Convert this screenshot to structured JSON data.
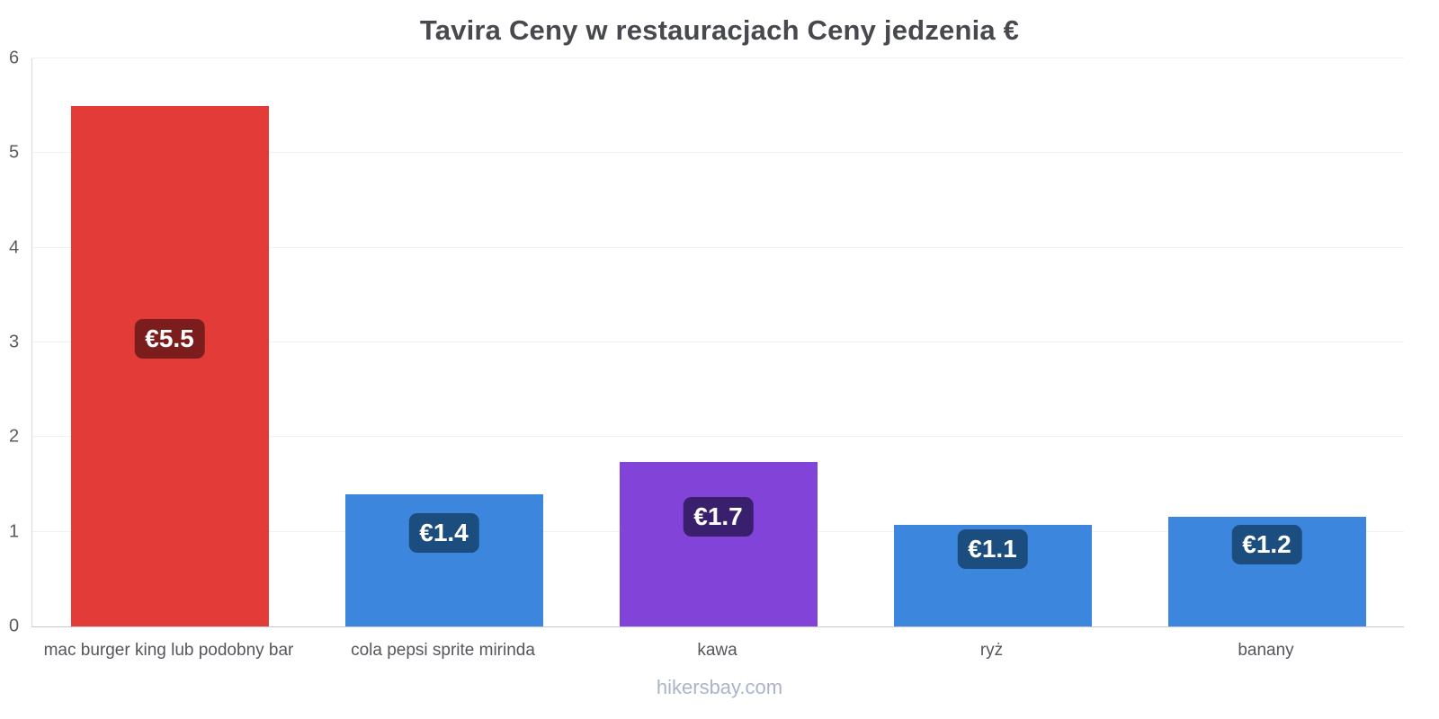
{
  "title": "Tavira Ceny w restauracjach Ceny jedzenia €",
  "watermark": "hikersbay.com",
  "chart_data": {
    "type": "bar",
    "title": "Tavira Ceny w restauracjach Ceny jedzenia €",
    "categories": [
      "mac burger king lub podobny bar",
      "cola pepsi sprite mirinda",
      "kawa",
      "ryż",
      "banany"
    ],
    "values": [
      5.5,
      1.4,
      1.74,
      1.07,
      1.16
    ],
    "value_labels": [
      "€5.5",
      "€1.4",
      "€1.7",
      "€1.1",
      "€1.2"
    ],
    "bar_colors": [
      "#e23b38",
      "#3d86de",
      "#8143d8",
      "#3d86de",
      "#3d86de"
    ],
    "badge_colors": [
      "#7c1d1d",
      "#1b4e7e",
      "#3a1f6e",
      "#1b4e7e",
      "#1b4e7e"
    ],
    "currency": "€",
    "xlabel": "",
    "ylabel": "",
    "ylim": [
      0,
      6
    ],
    "yticks": [
      0,
      1,
      2,
      3,
      4,
      5,
      6
    ],
    "grid": true,
    "legend_position": "none"
  }
}
